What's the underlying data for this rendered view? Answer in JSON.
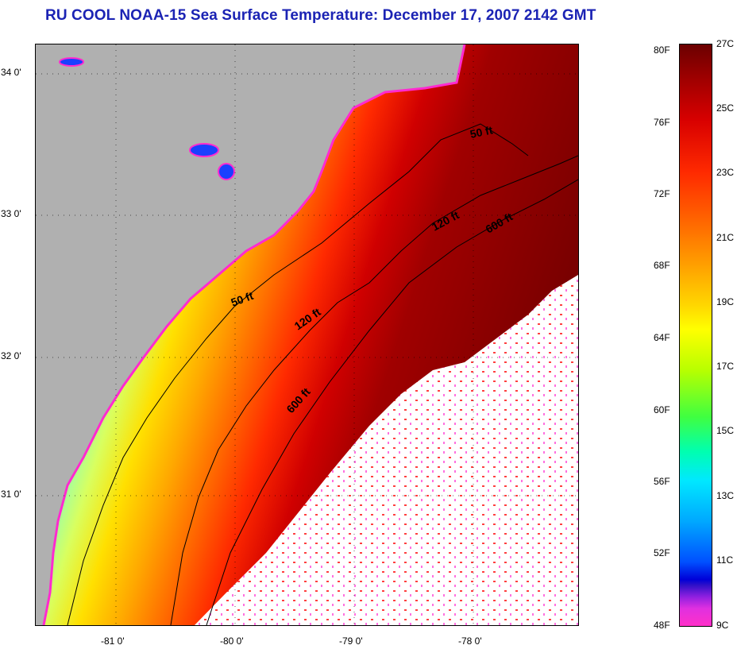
{
  "title": "RU COOL  NOAA-15  Sea Surface Temperature:  December 17, 2007 2142 GMT",
  "map": {
    "lat_labels": [
      "34 0'",
      "33 0'",
      "32 0'",
      "31 0'"
    ],
    "lon_labels": [
      "-81 0'",
      "-80 0'",
      "-79 0'",
      "-78 0'"
    ],
    "isobath_labels": [
      "50 ft",
      "120 ft",
      "600 ft",
      "50 ft",
      "120 ft",
      "600 ft"
    ],
    "colors": {
      "land": "#b0b0b0",
      "clouds": "#ffffff",
      "coast_outline": "#ff2ad0",
      "isobath_line": "#000000"
    }
  },
  "colorbar": {
    "fahrenheit_labels": [
      "80F",
      "76F",
      "72F",
      "68F",
      "64F",
      "60F",
      "56F",
      "52F",
      "48F"
    ],
    "celsius_labels": [
      "27C",
      "25C",
      "23C",
      "21C",
      "19C",
      "17C",
      "15C",
      "13C",
      "11C",
      "9C"
    ]
  }
}
